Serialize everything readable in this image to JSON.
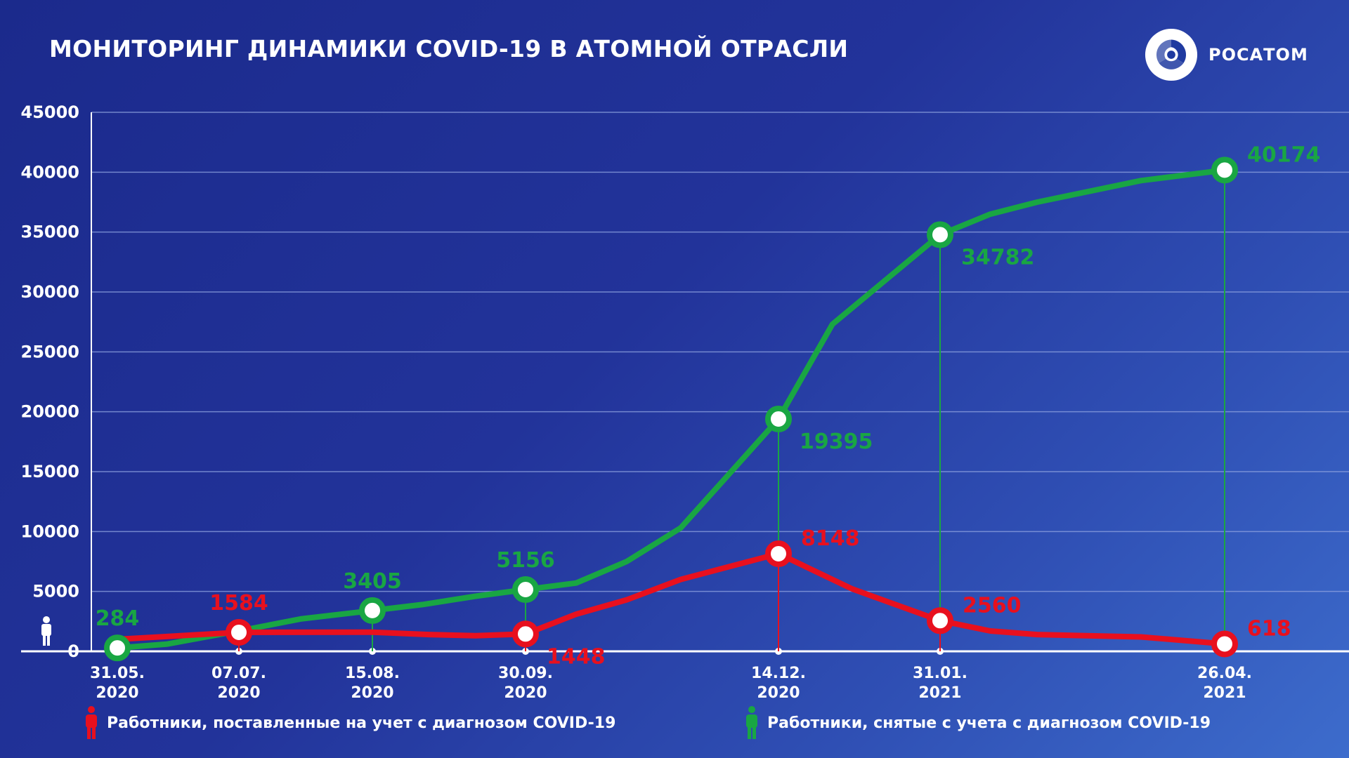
{
  "title": "МОНИТОРИНГ ДИНАМИКИ COVID-19 В АТОМНОЙ ОТРАСЛИ",
  "logo": {
    "text": "РОСАТОМ",
    "icon": "rosatom-atom-logo-icon"
  },
  "colors": {
    "registered": "#e8101e",
    "deregistered": "#19a643",
    "gridline": "#8fa3e0",
    "background": "#1f2f95"
  },
  "legend": {
    "registered": {
      "label": "Работники, поставленные на учет с диагнозом COVID-19",
      "icon": "person-red-icon"
    },
    "deregistered": {
      "label": "Работники, снятые с учета с диагнозом COVID-19",
      "icon": "person-green-icon"
    }
  },
  "chart_data": {
    "type": "line",
    "title": "МОНИТОРИНГ ДИНАМИКИ COVID-19 В АТОМНОЙ ОТРАСЛИ",
    "ylim": [
      0,
      45000
    ],
    "y_ticks": [
      "0",
      "5000",
      "10000",
      "15000",
      "20000",
      "25000",
      "30000",
      "35000",
      "40000",
      "45000"
    ],
    "y_tick_values": [
      0,
      5000,
      10000,
      15000,
      20000,
      25000,
      30000,
      35000,
      40000,
      45000
    ],
    "zero_icon": "person-white-icon",
    "grid": true,
    "x_dates": [
      {
        "key": "2020-05-31",
        "line1": "31.05.",
        "line2": "2020"
      },
      {
        "key": "2020-07-07",
        "line1": "07.07.",
        "line2": "2020"
      },
      {
        "key": "2020-08-15",
        "line1": "15.08.",
        "line2": "2020"
      },
      {
        "key": "2020-09-30",
        "line1": "30.09.",
        "line2": "2020"
      },
      {
        "key": "2020-12-14",
        "line1": "14.12.",
        "line2": "2020"
      },
      {
        "key": "2021-01-31",
        "line1": "31.01.",
        "line2": "2021"
      },
      {
        "key": "2021-04-26",
        "line1": "26.04.",
        "line2": "2021"
      }
    ],
    "series": [
      {
        "key": "deregistered",
        "color": "#19a643",
        "points": [
          [
            "2020-05-31",
            284
          ],
          [
            "2020-06-15",
            600
          ],
          [
            "2020-07-07",
            1700
          ],
          [
            "2020-07-25",
            2700
          ],
          [
            "2020-08-15",
            3405
          ],
          [
            "2020-08-30",
            3900
          ],
          [
            "2020-09-15",
            4600
          ],
          [
            "2020-09-30",
            5156
          ],
          [
            "2020-10-15",
            5700
          ],
          [
            "2020-10-30",
            7500
          ],
          [
            "2020-11-15",
            10300
          ],
          [
            "2020-12-14",
            19395
          ],
          [
            "2020-12-30",
            27300
          ],
          [
            "2021-01-31",
            34782
          ],
          [
            "2021-02-15",
            36500
          ],
          [
            "2021-03-01",
            37500
          ],
          [
            "2021-04-01",
            39300
          ],
          [
            "2021-04-26",
            40174
          ]
        ],
        "labeled": [
          {
            "date": "2020-05-31",
            "value": 284,
            "label": "284",
            "pos": "above"
          },
          {
            "date": "2020-08-15",
            "value": 3405,
            "label": "3405",
            "pos": "above"
          },
          {
            "date": "2020-09-30",
            "value": 5156,
            "label": "5156",
            "pos": "above"
          },
          {
            "date": "2020-12-14",
            "value": 19395,
            "label": "19395",
            "pos": "below-right"
          },
          {
            "date": "2021-01-31",
            "value": 34782,
            "label": "34782",
            "pos": "below-right"
          },
          {
            "date": "2021-04-26",
            "value": 40174,
            "label": "40174",
            "pos": "above-right"
          }
        ]
      },
      {
        "key": "registered",
        "color": "#e8101e",
        "points": [
          [
            "2020-05-31",
            1000
          ],
          [
            "2020-07-07",
            1584
          ],
          [
            "2020-08-15",
            1600
          ],
          [
            "2020-09-01",
            1400
          ],
          [
            "2020-09-15",
            1300
          ],
          [
            "2020-09-30",
            1448
          ],
          [
            "2020-10-15",
            3100
          ],
          [
            "2020-10-30",
            4300
          ],
          [
            "2020-11-15",
            6000
          ],
          [
            "2020-12-14",
            8148
          ],
          [
            "2021-01-05",
            5200
          ],
          [
            "2021-01-31",
            2560
          ],
          [
            "2021-02-15",
            1700
          ],
          [
            "2021-03-01",
            1400
          ],
          [
            "2021-04-01",
            1200
          ],
          [
            "2021-04-26",
            618
          ]
        ],
        "labeled": [
          {
            "date": "2020-07-07",
            "value": 1584,
            "label": "1584",
            "pos": "above"
          },
          {
            "date": "2020-09-30",
            "value": 1448,
            "label": "1448",
            "pos": "below-right"
          },
          {
            "date": "2020-12-14",
            "value": 8148,
            "label": "8148",
            "pos": "above-right"
          },
          {
            "date": "2021-01-31",
            "value": 2560,
            "label": "2560",
            "pos": "above-right"
          },
          {
            "date": "2021-04-26",
            "value": 618,
            "label": "618",
            "pos": "above-right"
          }
        ]
      }
    ]
  }
}
